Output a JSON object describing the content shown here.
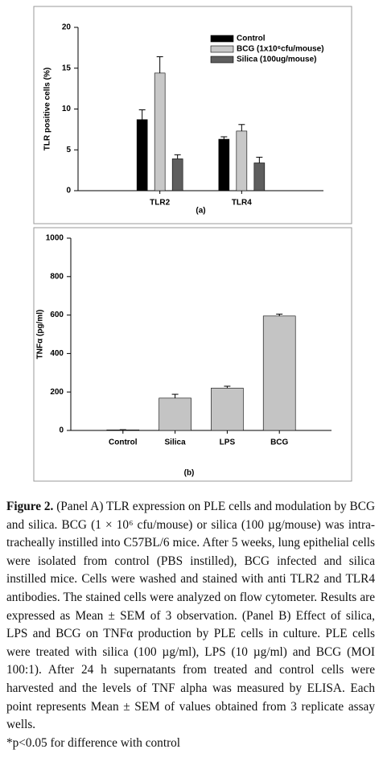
{
  "chart_data": [
    {
      "type": "bar",
      "subtitle": "(a)",
      "y_label": "TLR positive cells (%)",
      "categories": [
        "TLR2",
        "TLR4"
      ],
      "series": [
        {
          "name": "Control",
          "color": "#000000",
          "values": [
            8.7,
            6.3
          ],
          "errors": [
            1.2,
            0.3
          ]
        },
        {
          "name": "BCG (1x10⁶cfu/mouse)",
          "color": "#c8c8c8",
          "values": [
            14.4,
            7.3
          ],
          "errors": [
            2.0,
            0.8
          ]
        },
        {
          "name": "Silica (100ug/mouse)",
          "color": "#5e5e5e",
          "values": [
            3.9,
            3.4
          ],
          "errors": [
            0.5,
            0.7
          ]
        }
      ],
      "ylim": [
        0,
        20
      ],
      "yticks": [
        0,
        5,
        10,
        15,
        20
      ],
      "legend": "upper right"
    },
    {
      "type": "bar",
      "subtitle": "(b)",
      "y_label": "TNFα (pg/ml)",
      "categories": [
        "Control",
        "Silica",
        "LPS",
        "BCG"
      ],
      "values": [
        3,
        168,
        220,
        595
      ],
      "errors": [
        1,
        20,
        10,
        10
      ],
      "color": "#c4c4c4",
      "ylim": [
        0,
        1000
      ],
      "yticks": [
        0,
        200,
        400,
        600,
        800,
        1000
      ]
    }
  ],
  "caption": {
    "label": "Figure 2.",
    "text": "(Panel A) TLR expression on PLE cells and modulation by BCG and silica. BCG (1 × 10⁶ cfu/mouse) or silica (100 µg/mouse) was intra-tracheally instilled into C57BL/6 mice. After 5 weeks, lung epithelial cells were isolated from control (PBS instilled), BCG infected and silica instilled mice. Cells were washed and stained with anti TLR2 and TLR4 antibodies. The stained cells were analyzed on flow cytometer. Results are expressed as Mean ± SEM of 3 observation. (Panel B) Effect of silica, LPS and BCG on TNFα production by PLE cells in culture. PLE cells were treated with silica (100 µg/ml), LPS (10 µg/ml) and BCG (MOI 100:1). After 24 h supernatants from treated and control cells were harvested and the levels of TNF alpha was measured by ELISA. Each point represents Mean ± SEM of values obtained from 3 replicate assay wells.",
    "note": "*p<0.05 for difference with control"
  }
}
